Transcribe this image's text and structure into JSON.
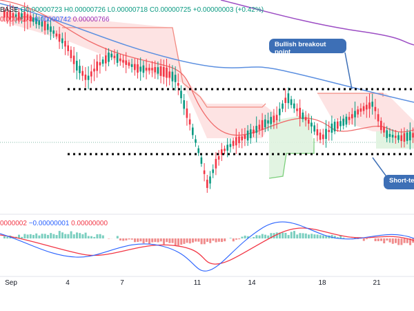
{
  "legend": {
    "symbol_fragment": "BASE",
    "open": "O0.00000723",
    "high": "H0.00000726",
    "low": "L0.00000718",
    "close": "C0.00000725",
    "change": "+0.00000003 (+0.42%)",
    "value_red": "0.0000073",
    "value_blue_a": "0.00000742",
    "value_blue_b": "0.00000766"
  },
  "macd_legend": {
    "v1": "0000002",
    "v2": "−0.00000001",
    "v3": "0.00000000"
  },
  "annotations": {
    "bullish": "Bullish breakout point",
    "short": "Short-te"
  },
  "date_axis": [
    "Sep",
    "4",
    "7",
    "11",
    "14",
    "18",
    "21"
  ],
  "colors": {
    "up": "#089981",
    "down": "#f23645",
    "baseline_slow": "#5b8fe0",
    "baseline_long": "#9c4dc4",
    "supertrend_down": "#f28b82",
    "supertrend_up": "#7ccf7c",
    "callout": "#3d6fb6"
  },
  "chart_data": {
    "type": "candlestick",
    "x_labels": [
      "Sep",
      "4",
      "7",
      "11",
      "14",
      "18",
      "21"
    ],
    "support_level_drawn": true,
    "resistance_level_drawn": true
  }
}
